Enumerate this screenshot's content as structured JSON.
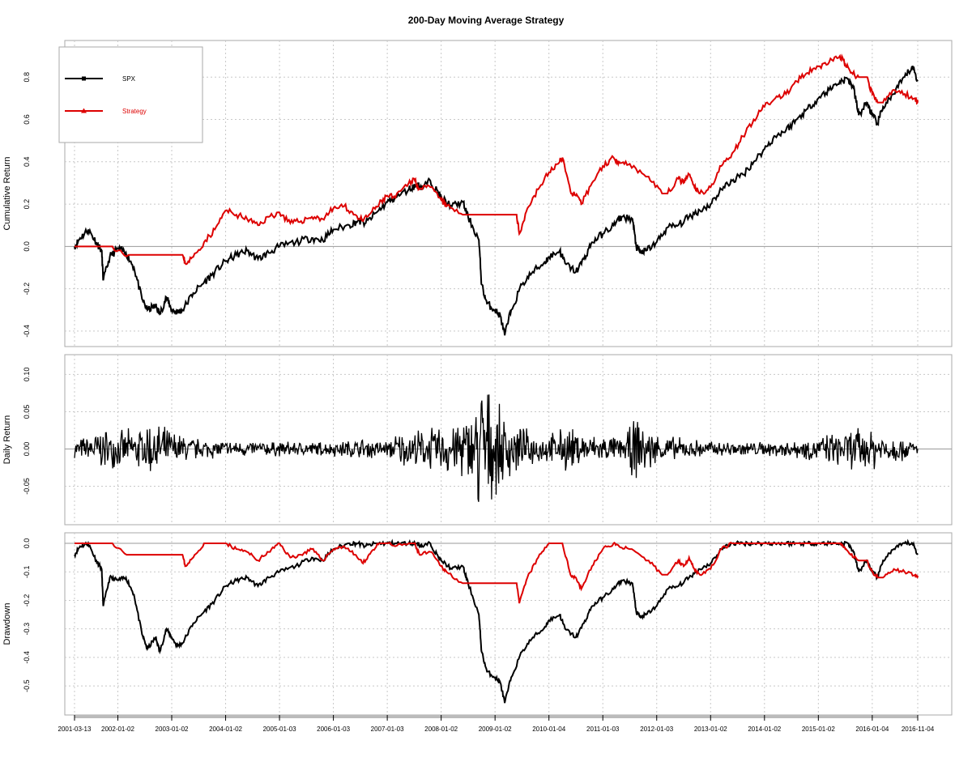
{
  "title": "200-Day Moving Average Strategy",
  "legend": {
    "placement": "top-left",
    "items": [
      {
        "label": "SPX",
        "color": "#000000"
      },
      {
        "label": "Strategy",
        "color": "#dd0000"
      }
    ]
  },
  "x_axis": {
    "tick_labels": [
      "2001-03-13",
      "2002-01-02",
      "2003-01-02",
      "2004-01-02",
      "2005-01-03",
      "2006-01-03",
      "2007-01-03",
      "2008-01-02",
      "2009-01-02",
      "2010-01-04",
      "2011-01-03",
      "2012-01-03",
      "2013-01-02",
      "2014-01-02",
      "2015-01-02",
      "2016-01-04",
      "2016-11-04"
    ],
    "tick_positions": [
      2001.196,
      2002.0,
      2003.0,
      2004.0,
      2005.0,
      2006.0,
      2007.0,
      2008.0,
      2009.0,
      2010.0,
      2011.0,
      2012.0,
      2013.0,
      2014.0,
      2015.0,
      2016.0,
      2016.844
    ],
    "range": [
      2001.196,
      2016.844
    ]
  },
  "colors": {
    "spx": "#000000",
    "strategy": "#dd0000",
    "zero_line": "#999999",
    "grid": "#c8c8c8",
    "frame": "#aaaaaa"
  },
  "chart_data": [
    {
      "type": "line",
      "name": "cumulative-return",
      "title": "",
      "xlabel": "",
      "ylabel": "Cumulative Return",
      "ylim": [
        -0.45,
        0.95
      ],
      "yticks": [
        -0.4,
        -0.2,
        0.0,
        0.2,
        0.4,
        0.6,
        0.8
      ],
      "ytick_labels": [
        "-0.4",
        "-0.2",
        "0.0",
        "0.2",
        "0.4",
        "0.6",
        "0.8"
      ],
      "grid": true,
      "series": [
        {
          "name": "SPX",
          "x": [
            2001.196,
            2001.3,
            2001.45,
            2001.6,
            2001.7,
            2001.73,
            2001.85,
            2002.0,
            2002.15,
            2002.3,
            2002.45,
            2002.55,
            2002.7,
            2002.78,
            2002.9,
            2003.0,
            2003.1,
            2003.2,
            2003.4,
            2003.6,
            2003.8,
            2004.0,
            2004.2,
            2004.4,
            2004.6,
            2004.8,
            2005.0,
            2005.3,
            2005.6,
            2005.8,
            2006.0,
            2006.3,
            2006.45,
            2006.6,
            2006.8,
            2007.0,
            2007.15,
            2007.4,
            2007.55,
            2007.65,
            2007.8,
            2007.95,
            2008.0,
            2008.2,
            2008.4,
            2008.5,
            2008.7,
            2008.75,
            2008.85,
            2009.0,
            2009.1,
            2009.18,
            2009.3,
            2009.5,
            2009.7,
            2009.9,
            2010.0,
            2010.2,
            2010.3,
            2010.5,
            2010.65,
            2010.8,
            2011.0,
            2011.2,
            2011.35,
            2011.55,
            2011.62,
            2011.7,
            2011.8,
            2012.0,
            2012.2,
            2012.4,
            2012.6,
            2012.8,
            2013.0,
            2013.2,
            2013.4,
            2013.6,
            2013.8,
            2014.0,
            2014.2,
            2014.4,
            2014.6,
            2014.8,
            2015.0,
            2015.2,
            2015.4,
            2015.55,
            2015.65,
            2015.75,
            2015.9,
            2016.0,
            2016.1,
            2016.2,
            2016.4,
            2016.6,
            2016.75,
            2016.844
          ],
          "y": [
            0.0,
            0.04,
            0.08,
            0.02,
            -0.02,
            -0.16,
            -0.05,
            -0.01,
            -0.03,
            -0.1,
            -0.25,
            -0.3,
            -0.28,
            -0.32,
            -0.24,
            -0.3,
            -0.31,
            -0.3,
            -0.22,
            -0.17,
            -0.12,
            -0.07,
            -0.04,
            -0.02,
            -0.06,
            -0.03,
            0.0,
            0.02,
            0.04,
            0.03,
            0.08,
            0.1,
            0.12,
            0.11,
            0.16,
            0.21,
            0.23,
            0.27,
            0.29,
            0.28,
            0.31,
            0.25,
            0.23,
            0.19,
            0.21,
            0.14,
            0.03,
            -0.18,
            -0.27,
            -0.3,
            -0.33,
            -0.42,
            -0.3,
            -0.18,
            -0.12,
            -0.08,
            -0.05,
            -0.02,
            -0.08,
            -0.12,
            -0.06,
            0.02,
            0.06,
            0.1,
            0.14,
            0.13,
            0.0,
            -0.03,
            -0.02,
            0.02,
            0.09,
            0.1,
            0.14,
            0.17,
            0.2,
            0.27,
            0.31,
            0.34,
            0.4,
            0.46,
            0.52,
            0.55,
            0.6,
            0.65,
            0.7,
            0.74,
            0.78,
            0.79,
            0.75,
            0.62,
            0.68,
            0.62,
            0.58,
            0.66,
            0.72,
            0.8,
            0.85,
            0.78
          ]
        },
        {
          "name": "Strategy",
          "x": [
            2001.196,
            2001.45,
            2001.9,
            2002.2,
            2002.7,
            2003.2,
            2003.25,
            2003.4,
            2003.6,
            2003.8,
            2004.0,
            2004.2,
            2004.4,
            2004.6,
            2004.8,
            2005.0,
            2005.2,
            2005.4,
            2005.6,
            2005.8,
            2006.0,
            2006.2,
            2006.4,
            2006.55,
            2006.7,
            2006.85,
            2007.0,
            2007.15,
            2007.4,
            2007.5,
            2007.6,
            2007.8,
            2008.0,
            2008.1,
            2008.4,
            2008.55,
            2009.1,
            2009.4,
            2009.45,
            2009.6,
            2009.8,
            2010.0,
            2010.2,
            2010.25,
            2010.4,
            2010.5,
            2010.6,
            2010.8,
            2011.0,
            2011.2,
            2011.3,
            2011.5,
            2011.8,
            2011.85,
            2012.1,
            2012.2,
            2012.4,
            2012.5,
            2012.6,
            2012.7,
            2012.8,
            2013.0,
            2013.2,
            2013.4,
            2013.6,
            2013.8,
            2014.0,
            2014.2,
            2014.4,
            2014.6,
            2014.8,
            2015.0,
            2015.2,
            2015.4,
            2015.5,
            2015.6,
            2015.75,
            2015.9,
            2016.0,
            2016.1,
            2016.2,
            2016.4,
            2016.6,
            2016.8,
            2016.844
          ],
          "y": [
            0.0,
            0.0,
            0.0,
            -0.04,
            -0.04,
            -0.04,
            -0.08,
            -0.05,
            0.02,
            0.08,
            0.17,
            0.15,
            0.13,
            0.1,
            0.14,
            0.16,
            0.11,
            0.12,
            0.14,
            0.13,
            0.18,
            0.19,
            0.15,
            0.12,
            0.16,
            0.2,
            0.24,
            0.23,
            0.3,
            0.32,
            0.27,
            0.28,
            0.22,
            0.19,
            0.15,
            0.15,
            0.15,
            0.15,
            0.06,
            0.18,
            0.27,
            0.35,
            0.4,
            0.42,
            0.26,
            0.24,
            0.2,
            0.3,
            0.38,
            0.42,
            0.4,
            0.39,
            0.33,
            0.33,
            0.25,
            0.25,
            0.32,
            0.3,
            0.34,
            0.28,
            0.25,
            0.28,
            0.38,
            0.44,
            0.52,
            0.6,
            0.66,
            0.7,
            0.72,
            0.78,
            0.82,
            0.85,
            0.87,
            0.9,
            0.86,
            0.82,
            0.8,
            0.8,
            0.72,
            0.68,
            0.68,
            0.74,
            0.72,
            0.7,
            0.68
          ]
        }
      ]
    },
    {
      "type": "line",
      "name": "daily-return",
      "title": "",
      "xlabel": "",
      "ylabel": "Daily Return",
      "ylim": [
        -0.095,
        0.12
      ],
      "yticks": [
        -0.05,
        0.0,
        0.05,
        0.1
      ],
      "ytick_labels": [
        "-0.05",
        "0.00",
        "0.05",
        "0.10"
      ],
      "grid": true,
      "series": [
        {
          "name": "SPX",
          "x": [
            2001.196,
            2001.4,
            2001.7,
            2002.0,
            2002.4,
            2002.6,
            2002.8,
            2003.0,
            2003.2,
            2003.5,
            2004.0,
            2005.0,
            2006.0,
            2006.5,
            2007.0,
            2007.2,
            2007.6,
            2008.0,
            2008.2,
            2008.5,
            2008.65,
            2008.75,
            2008.85,
            2009.0,
            2009.2,
            2009.4,
            2009.7,
            2010.0,
            2010.3,
            2010.5,
            2010.8,
            2011.0,
            2011.4,
            2011.6,
            2011.8,
            2012.0,
            2012.5,
            2013.0,
            2014.0,
            2014.6,
            2015.0,
            2015.6,
            2015.8,
            2016.0,
            2016.3,
            2016.6,
            2016.844
          ],
          "y": [
            0.008,
            0.012,
            0.02,
            0.016,
            0.02,
            0.028,
            0.022,
            0.018,
            0.014,
            0.01,
            0.008,
            0.007,
            0.007,
            0.01,
            0.008,
            0.016,
            0.018,
            0.022,
            0.028,
            0.03,
            0.05,
            0.08,
            0.06,
            0.04,
            0.035,
            0.022,
            0.016,
            0.013,
            0.022,
            0.018,
            0.014,
            0.012,
            0.012,
            0.03,
            0.024,
            0.014,
            0.01,
            0.008,
            0.007,
            0.009,
            0.012,
            0.018,
            0.022,
            0.02,
            0.016,
            0.01,
            0.008
          ]
        }
      ]
    },
    {
      "type": "line",
      "name": "drawdown",
      "title": "",
      "xlabel": "",
      "ylabel": "Drawdown",
      "ylim": [
        -0.585,
        0.02
      ],
      "yticks": [
        -0.5,
        -0.4,
        -0.3,
        -0.2,
        -0.1,
        0.0
      ],
      "ytick_labels": [
        "-0.5",
        "-0.4",
        "-0.3",
        "-0.2",
        "-0.1",
        "0.0"
      ],
      "grid": true,
      "series": [
        {
          "name": "SPX",
          "x": [
            2001.196,
            2001.3,
            2001.45,
            2001.6,
            2001.7,
            2001.73,
            2001.85,
            2002.0,
            2002.15,
            2002.3,
            2002.45,
            2002.55,
            2002.7,
            2002.78,
            2002.9,
            2003.0,
            2003.1,
            2003.2,
            2003.4,
            2003.6,
            2003.8,
            2004.0,
            2004.2,
            2004.4,
            2004.6,
            2004.8,
            2005.0,
            2005.3,
            2005.6,
            2005.8,
            2006.0,
            2006.3,
            2006.45,
            2006.6,
            2006.8,
            2007.0,
            2007.15,
            2007.4,
            2007.55,
            2007.65,
            2007.8,
            2007.95,
            2008.0,
            2008.2,
            2008.4,
            2008.5,
            2008.7,
            2008.75,
            2008.85,
            2009.0,
            2009.1,
            2009.18,
            2009.3,
            2009.5,
            2009.7,
            2009.9,
            2010.0,
            2010.2,
            2010.3,
            2010.5,
            2010.65,
            2010.8,
            2011.0,
            2011.2,
            2011.35,
            2011.55,
            2011.62,
            2011.7,
            2011.8,
            2012.0,
            2012.2,
            2012.4,
            2012.6,
            2012.8,
            2013.0,
            2013.2,
            2013.4,
            2013.6,
            2013.8,
            2014.0,
            2014.2,
            2014.4,
            2014.6,
            2014.8,
            2015.0,
            2015.2,
            2015.4,
            2015.55,
            2015.65,
            2015.75,
            2015.9,
            2016.0,
            2016.1,
            2016.2,
            2016.4,
            2016.6,
            2016.75,
            2016.844
          ],
          "y": [
            -0.04,
            -0.01,
            0.0,
            -0.06,
            -0.09,
            -0.22,
            -0.12,
            -0.13,
            -0.12,
            -0.18,
            -0.32,
            -0.37,
            -0.33,
            -0.38,
            -0.3,
            -0.33,
            -0.36,
            -0.35,
            -0.28,
            -0.24,
            -0.2,
            -0.15,
            -0.13,
            -0.12,
            -0.15,
            -0.12,
            -0.1,
            -0.08,
            -0.05,
            -0.06,
            -0.02,
            0.0,
            0.0,
            -0.01,
            0.0,
            0.0,
            0.0,
            0.0,
            0.0,
            -0.01,
            0.0,
            -0.05,
            -0.06,
            -0.09,
            -0.08,
            -0.14,
            -0.25,
            -0.38,
            -0.45,
            -0.47,
            -0.49,
            -0.56,
            -0.47,
            -0.38,
            -0.33,
            -0.3,
            -0.27,
            -0.25,
            -0.3,
            -0.33,
            -0.28,
            -0.22,
            -0.19,
            -0.16,
            -0.13,
            -0.14,
            -0.24,
            -0.26,
            -0.25,
            -0.22,
            -0.16,
            -0.15,
            -0.12,
            -0.09,
            -0.07,
            -0.02,
            0.0,
            0.0,
            0.0,
            0.0,
            0.0,
            0.0,
            0.0,
            0.0,
            0.0,
            0.0,
            0.0,
            0.0,
            -0.03,
            -0.1,
            -0.06,
            -0.1,
            -0.12,
            -0.06,
            -0.02,
            0.0,
            0.0,
            -0.04
          ]
        },
        {
          "name": "Strategy",
          "x": [
            2001.196,
            2001.45,
            2001.9,
            2002.2,
            2002.7,
            2003.2,
            2003.25,
            2003.4,
            2003.6,
            2003.8,
            2004.0,
            2004.2,
            2004.4,
            2004.6,
            2004.8,
            2005.0,
            2005.2,
            2005.4,
            2005.6,
            2005.8,
            2006.0,
            2006.2,
            2006.4,
            2006.55,
            2006.7,
            2006.85,
            2007.0,
            2007.15,
            2007.4,
            2007.5,
            2007.6,
            2007.8,
            2008.0,
            2008.1,
            2008.4,
            2008.55,
            2009.1,
            2009.4,
            2009.45,
            2009.6,
            2009.8,
            2010.0,
            2010.2,
            2010.25,
            2010.4,
            2010.5,
            2010.6,
            2010.8,
            2011.0,
            2011.2,
            2011.3,
            2011.5,
            2011.8,
            2011.85,
            2012.1,
            2012.2,
            2012.4,
            2012.5,
            2012.6,
            2012.7,
            2012.8,
            2013.0,
            2013.2,
            2013.4,
            2013.6,
            2013.8,
            2014.0,
            2014.2,
            2014.4,
            2014.6,
            2014.8,
            2015.0,
            2015.2,
            2015.4,
            2015.5,
            2015.6,
            2015.75,
            2015.9,
            2016.0,
            2016.1,
            2016.2,
            2016.4,
            2016.6,
            2016.8,
            2016.844
          ],
          "y": [
            0.0,
            0.0,
            0.0,
            -0.04,
            -0.04,
            -0.04,
            -0.08,
            -0.05,
            0.0,
            0.0,
            0.0,
            -0.02,
            -0.03,
            -0.06,
            -0.03,
            0.0,
            -0.05,
            -0.04,
            -0.02,
            -0.06,
            -0.02,
            -0.01,
            -0.04,
            -0.07,
            -0.03,
            0.0,
            0.0,
            -0.01,
            0.0,
            0.0,
            -0.04,
            -0.03,
            -0.08,
            -0.1,
            -0.14,
            -0.14,
            -0.14,
            -0.14,
            -0.21,
            -0.12,
            -0.05,
            0.0,
            0.0,
            0.0,
            -0.11,
            -0.12,
            -0.16,
            -0.08,
            -0.02,
            0.0,
            -0.01,
            -0.02,
            -0.06,
            -0.06,
            -0.11,
            -0.11,
            -0.06,
            -0.08,
            -0.05,
            -0.09,
            -0.11,
            -0.09,
            -0.02,
            0.0,
            0.0,
            0.0,
            0.0,
            0.0,
            0.0,
            0.0,
            0.0,
            0.0,
            0.0,
            0.0,
            -0.02,
            -0.04,
            -0.06,
            -0.06,
            -0.1,
            -0.12,
            -0.12,
            -0.09,
            -0.1,
            -0.11,
            -0.12
          ]
        }
      ]
    }
  ]
}
